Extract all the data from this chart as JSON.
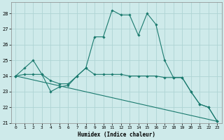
{
  "xlabel": "Humidex (Indice chaleur)",
  "bg_color": "#ceeaea",
  "line_color": "#1a7a6e",
  "grid_color": "#aed4d4",
  "xlim": [
    -0.5,
    23.5
  ],
  "ylim": [
    21.0,
    28.7
  ],
  "yticks": [
    21,
    22,
    23,
    24,
    25,
    26,
    27,
    28
  ],
  "xticks": [
    0,
    1,
    2,
    3,
    4,
    5,
    6,
    7,
    8,
    9,
    10,
    11,
    12,
    13,
    14,
    15,
    16,
    17,
    18,
    19,
    20,
    21,
    22,
    23
  ],
  "series": [
    {
      "x": [
        0,
        1,
        2,
        3,
        4,
        5,
        6,
        7,
        8,
        9,
        10,
        11,
        12,
        13,
        14,
        15,
        16,
        17,
        18,
        19,
        20,
        21,
        22,
        23
      ],
      "y": [
        24.0,
        24.5,
        25.0,
        24.1,
        23.0,
        23.3,
        23.4,
        24.0,
        24.5,
        26.5,
        26.5,
        28.2,
        27.9,
        27.9,
        26.6,
        28.0,
        27.3,
        25.0,
        23.9,
        23.9,
        23.0,
        22.2,
        22.0,
        21.1
      ]
    },
    {
      "x": [
        0,
        1,
        2,
        3,
        4,
        5,
        6,
        7,
        8,
        9,
        10,
        11,
        12,
        13,
        14,
        15,
        16,
        17,
        18,
        19,
        20,
        21,
        22,
        23
      ],
      "y": [
        24.0,
        24.1,
        24.1,
        24.1,
        23.7,
        23.5,
        23.5,
        24.0,
        24.5,
        24.1,
        24.1,
        24.1,
        24.1,
        24.0,
        24.0,
        24.0,
        24.0,
        23.9,
        23.9,
        23.9,
        23.0,
        22.2,
        22.0,
        21.1
      ]
    },
    {
      "x": [
        0,
        23
      ],
      "y": [
        24.0,
        21.1
      ]
    }
  ]
}
